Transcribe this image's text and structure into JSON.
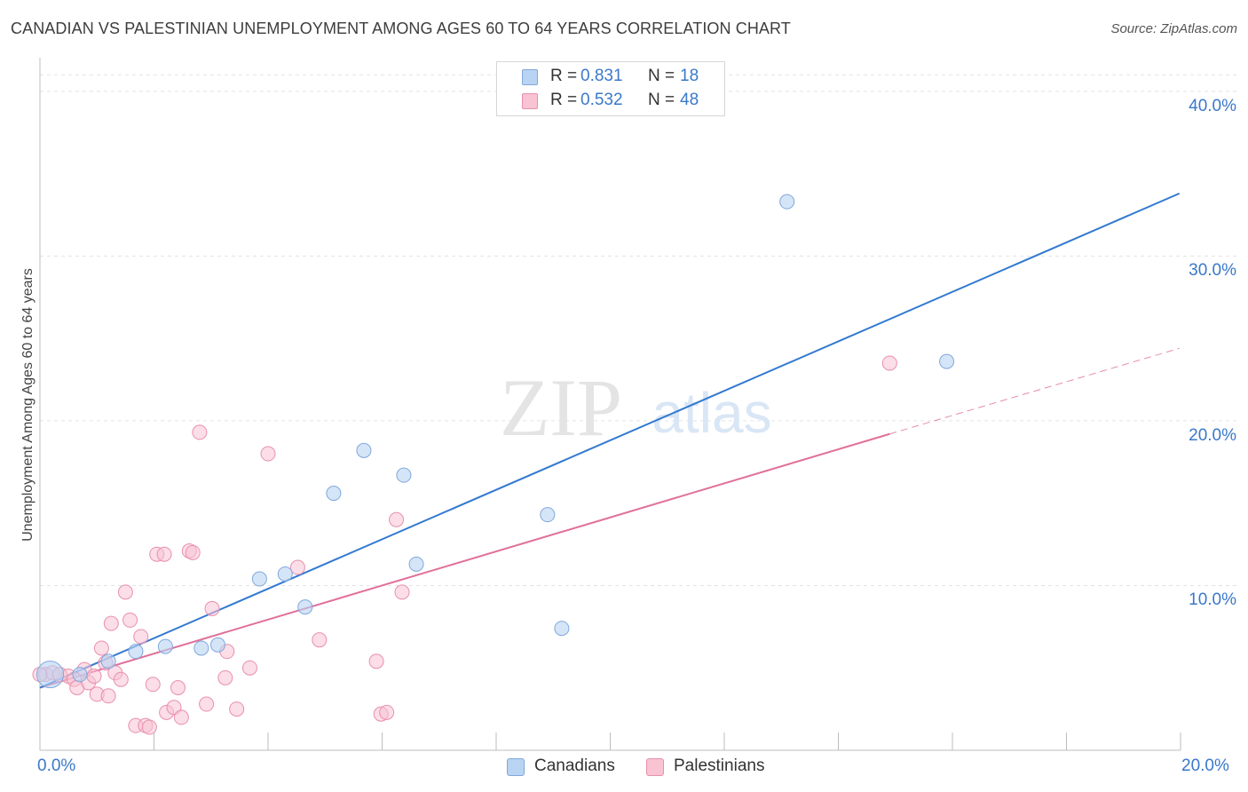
{
  "title": "CANADIAN VS PALESTINIAN UNEMPLOYMENT AMONG AGES 60 TO 64 YEARS CORRELATION CHART",
  "source": "Source: ZipAtlas.com",
  "watermark": {
    "zip": "ZIP",
    "atlas": "atlas"
  },
  "colors": {
    "canadians_fill": "#b9d3f3",
    "canadians_stroke": "#7fa8dc",
    "canadians_line": "#3279d0",
    "palestinians_fill": "#f8c3d3",
    "palestinians_stroke": "#e98fad",
    "palestinians_line": "#e0709a",
    "value_blue": "#3a78c9",
    "grid": "#e3e3e3"
  },
  "legend_top": [
    {
      "series": "Canadians",
      "r_label": "R =",
      "r_value": "0.831",
      "n_label": "N =",
      "n_value": "18"
    },
    {
      "series": "Palestinians",
      "r_label": "R =",
      "r_value": "0.532",
      "n_label": "N =",
      "n_value": "48"
    }
  ],
  "legend_bottom": [
    "Canadians",
    "Palestinians"
  ],
  "chart_data": {
    "type": "scatter",
    "title": "CANADIAN VS PALESTINIAN UNEMPLOYMENT AMONG AGES 60 TO 64 YEARS CORRELATION CHART",
    "xlabel": "",
    "ylabel": "Unemployment Among Ages 60 to 64 years",
    "xlim": [
      0,
      20
    ],
    "ylim": [
      0,
      41.5
    ],
    "x_tick_labels": [
      "0.0%",
      "20.0%"
    ],
    "y_ticks": [
      10,
      20,
      30,
      40
    ],
    "y_tick_labels": [
      "10.0%",
      "20.0%",
      "30.0%",
      "40.0%"
    ],
    "grid": true,
    "legend": "top-center",
    "series": [
      {
        "name": "Canadians",
        "R": 0.831,
        "N": 18,
        "trend": {
          "x0": 0,
          "y0": 3.8,
          "x1": 19.98,
          "y1": 33.8
        },
        "points": [
          {
            "x": 0.18,
            "y": 4.6,
            "big": true
          },
          {
            "x": 0.7,
            "y": 4.6
          },
          {
            "x": 1.2,
            "y": 5.4
          },
          {
            "x": 1.68,
            "y": 6.0
          },
          {
            "x": 2.2,
            "y": 6.3
          },
          {
            "x": 2.83,
            "y": 6.2
          },
          {
            "x": 3.12,
            "y": 6.4
          },
          {
            "x": 3.85,
            "y": 10.4
          },
          {
            "x": 4.3,
            "y": 10.7
          },
          {
            "x": 4.65,
            "y": 8.7
          },
          {
            "x": 5.15,
            "y": 15.6
          },
          {
            "x": 5.68,
            "y": 18.2
          },
          {
            "x": 6.38,
            "y": 16.7
          },
          {
            "x": 6.6,
            "y": 11.3
          },
          {
            "x": 8.9,
            "y": 14.3
          },
          {
            "x": 9.15,
            "y": 7.4
          },
          {
            "x": 13.1,
            "y": 33.3
          },
          {
            "x": 15.9,
            "y": 23.6
          }
        ]
      },
      {
        "name": "Palestinians",
        "R": 0.532,
        "N": 48,
        "trend": {
          "x0": 0,
          "y0": 3.8,
          "x1": 14.9,
          "y1": 19.2,
          "dash_to_x": 19.98,
          "dash_to_y": 24.4
        },
        "points": [
          {
            "x": 0.1,
            "y": 4.6
          },
          {
            "x": 0.22,
            "y": 4.7
          },
          {
            "x": 0.35,
            "y": 4.6
          },
          {
            "x": 0.5,
            "y": 4.5
          },
          {
            "x": 0.6,
            "y": 4.3
          },
          {
            "x": 0.65,
            "y": 3.8
          },
          {
            "x": 0.78,
            "y": 4.9
          },
          {
            "x": 0.85,
            "y": 4.1
          },
          {
            "x": 0.95,
            "y": 4.5
          },
          {
            "x": 1.0,
            "y": 3.4
          },
          {
            "x": 1.08,
            "y": 6.2
          },
          {
            "x": 1.15,
            "y": 5.3
          },
          {
            "x": 1.2,
            "y": 3.3
          },
          {
            "x": 1.25,
            "y": 7.7
          },
          {
            "x": 1.32,
            "y": 4.7
          },
          {
            "x": 1.42,
            "y": 4.3
          },
          {
            "x": 1.5,
            "y": 9.6
          },
          {
            "x": 1.58,
            "y": 7.9
          },
          {
            "x": 1.68,
            "y": 1.5
          },
          {
            "x": 1.77,
            "y": 6.9
          },
          {
            "x": 1.85,
            "y": 1.5
          },
          {
            "x": 1.92,
            "y": 1.4
          },
          {
            "x": 1.98,
            "y": 4.0
          },
          {
            "x": 2.05,
            "y": 11.9
          },
          {
            "x": 2.18,
            "y": 11.9
          },
          {
            "x": 2.22,
            "y": 2.3
          },
          {
            "x": 2.35,
            "y": 2.6
          },
          {
            "x": 2.42,
            "y": 3.8
          },
          {
            "x": 2.48,
            "y": 2.0
          },
          {
            "x": 2.62,
            "y": 12.1
          },
          {
            "x": 2.68,
            "y": 12.0
          },
          {
            "x": 2.8,
            "y": 19.3
          },
          {
            "x": 2.92,
            "y": 2.8
          },
          {
            "x": 3.02,
            "y": 8.6
          },
          {
            "x": 3.25,
            "y": 4.4
          },
          {
            "x": 3.28,
            "y": 6.0
          },
          {
            "x": 3.45,
            "y": 2.5
          },
          {
            "x": 3.68,
            "y": 5.0
          },
          {
            "x": 4.0,
            "y": 18.0
          },
          {
            "x": 4.52,
            "y": 11.1
          },
          {
            "x": 4.9,
            "y": 6.7
          },
          {
            "x": 5.9,
            "y": 5.4
          },
          {
            "x": 5.98,
            "y": 2.2
          },
          {
            "x": 6.08,
            "y": 2.3
          },
          {
            "x": 6.25,
            "y": 14.0
          },
          {
            "x": 6.35,
            "y": 9.6
          },
          {
            "x": 14.9,
            "y": 23.5
          },
          {
            "x": 0.0,
            "y": 4.6
          }
        ]
      }
    ]
  }
}
